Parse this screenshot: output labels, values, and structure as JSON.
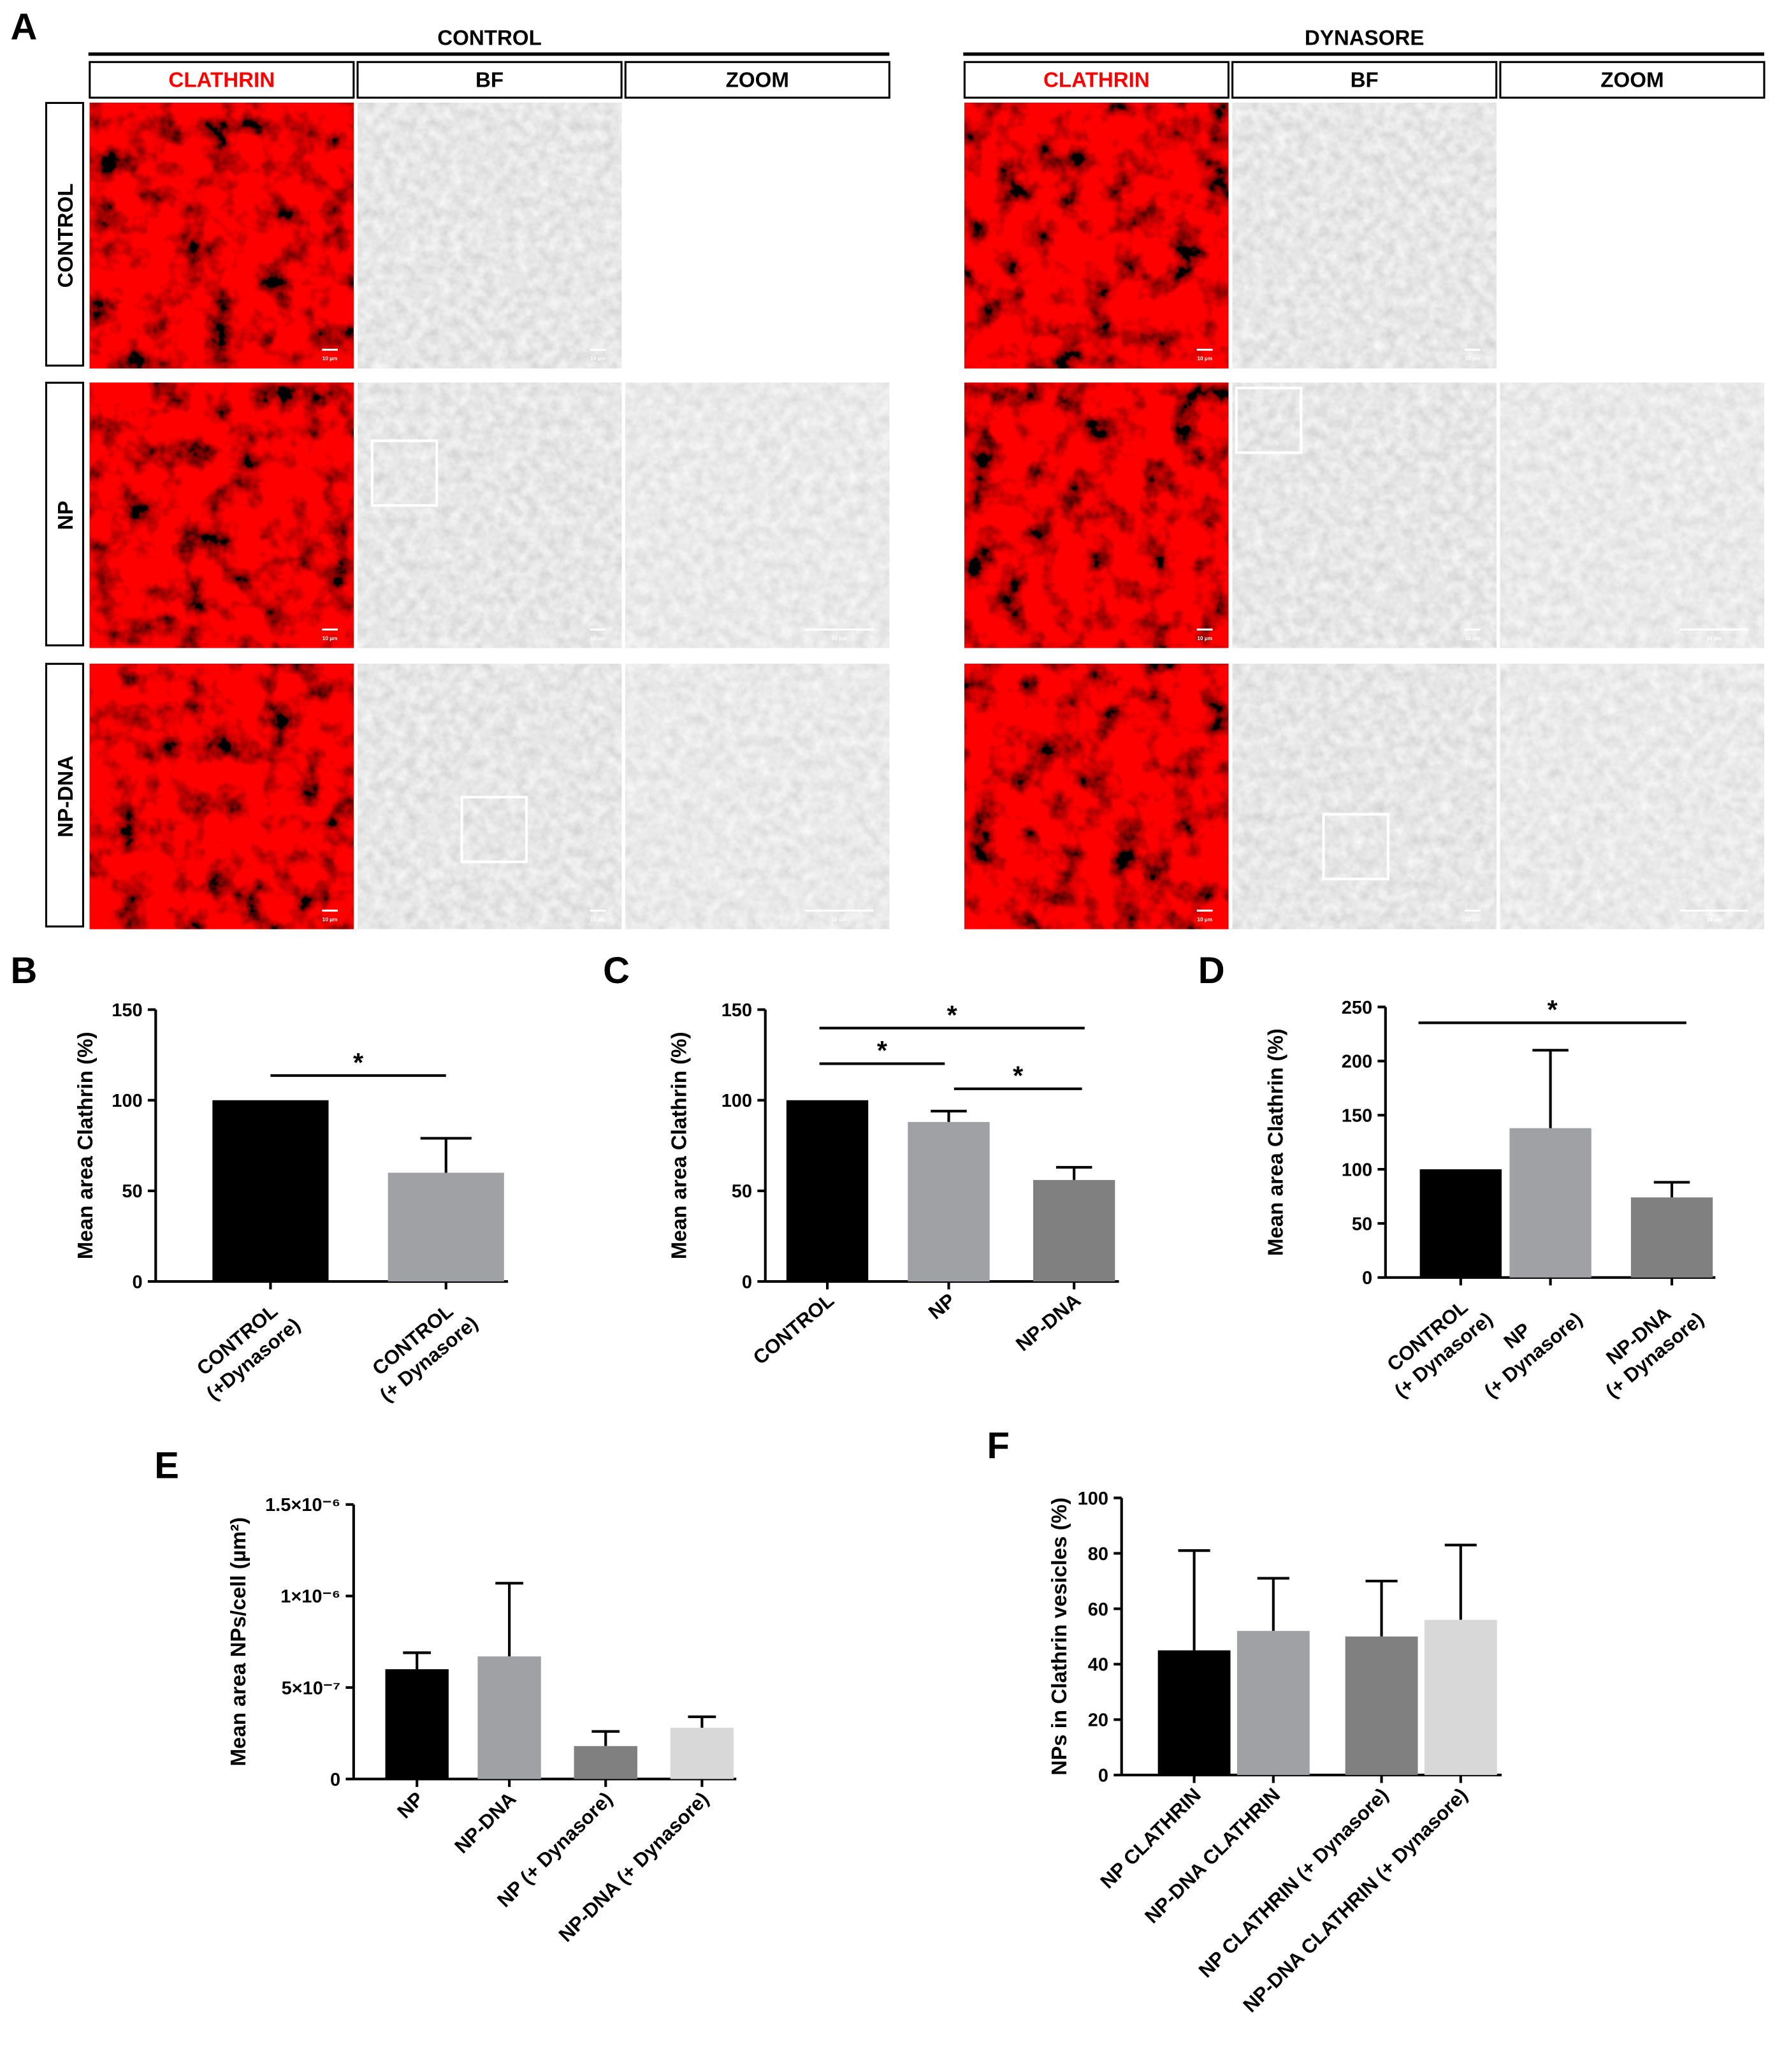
{
  "panel_a": {
    "letter": "A",
    "groups": [
      "CONTROL",
      "DYNASORE"
    ],
    "columns": [
      "CLATHRIN",
      "BF",
      "ZOOM"
    ],
    "rows": [
      "CONTROL",
      "NP",
      "NP-DNA"
    ],
    "scale_bar": "10 µm"
  },
  "chart_data": [
    {
      "type": "bar",
      "panel": "B",
      "y_label": "Mean area Clathrin (%)",
      "categories": [
        [
          "CONTROL",
          "(+Dynasore)"
        ],
        [
          "CONTROL",
          "(+ Dynasore)"
        ]
      ],
      "values": [
        100,
        60
      ],
      "errors": [
        0,
        19
      ],
      "colors": [
        "#000000",
        "#a0a1a5"
      ],
      "ylim": [
        0,
        150
      ],
      "yticks": [
        0,
        50,
        100,
        150
      ],
      "annotations": [
        "*"
      ]
    },
    {
      "type": "bar",
      "panel": "C",
      "y_label": "Mean area Clathrin (%)",
      "categories": [
        "CONTROL",
        "NP",
        "NP-DNA"
      ],
      "values": [
        100,
        88,
        56
      ],
      "errors": [
        0,
        6,
        7
      ],
      "colors": [
        "#000000",
        "#a0a1a5",
        "#808080"
      ],
      "ylim": [
        0,
        150
      ],
      "yticks": [
        0,
        50,
        100,
        150
      ],
      "annotations": [
        "*",
        "*",
        "*"
      ]
    },
    {
      "type": "bar",
      "panel": "D",
      "y_label": "Mean area Clathrin (%)",
      "categories": [
        [
          "CONTROL",
          "(+ Dynasore)"
        ],
        [
          "NP",
          "(+ Dynasore)"
        ],
        [
          "NP-DNA",
          "(+ Dynasore)"
        ]
      ],
      "values": [
        100,
        138,
        74
      ],
      "errors": [
        0,
        72,
        14
      ],
      "colors": [
        "#000000",
        "#a0a1a5",
        "#808080"
      ],
      "ylim": [
        0,
        250
      ],
      "yticks": [
        0,
        50,
        100,
        150,
        200,
        250
      ],
      "annotations": [
        "*"
      ]
    },
    {
      "type": "bar",
      "panel": "E",
      "y_label": "Mean area NPs/cell (µm²)",
      "categories": [
        "NP",
        "NP-DNA",
        "NP (+ Dynasore)",
        "NP-DNA (+ Dynasore)"
      ],
      "values": [
        6e-07,
        6.7e-07,
        1.8e-07,
        2.8e-07
      ],
      "errors": [
        9e-08,
        4e-07,
        8e-08,
        6e-08
      ],
      "colors": [
        "#000000",
        "#a0a1a5",
        "#808080",
        "#d8d8d8"
      ],
      "ylim": [
        0,
        1.5e-06
      ],
      "yticks": [
        0,
        {
          "value": 5e-07,
          "label": "5×10⁻⁷"
        },
        {
          "value": 1e-06,
          "label": "1×10⁻⁶"
        },
        {
          "value": 1.5e-06,
          "label": "1.5×10⁻⁶"
        }
      ]
    },
    {
      "type": "bar",
      "panel": "F",
      "y_label": "NPs in Clathrin vesicles (%)",
      "categories": [
        "NP CLATHRIN",
        "NP-DNA CLATHRIN",
        "NP CLATHRIN (+ Dynasore)",
        "NP-DNA CLATHRIN (+ Dynasore)"
      ],
      "values": [
        45,
        52,
        50,
        56
      ],
      "errors": [
        36,
        19,
        20,
        27
      ],
      "colors": [
        "#000000",
        "#a0a1a5",
        "#808080",
        "#d8d8d8"
      ],
      "ylim": [
        0,
        100
      ],
      "yticks": [
        0,
        20,
        40,
        60,
        80,
        100
      ]
    }
  ]
}
